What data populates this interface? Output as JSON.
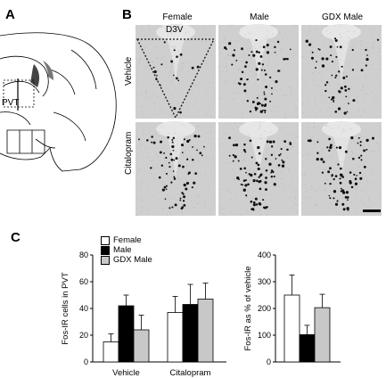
{
  "panels": {
    "a": {
      "letter": "A",
      "label": "PVT"
    },
    "b": {
      "letter": "B",
      "columns": [
        "Female",
        "Male",
        "GDX Male"
      ],
      "rows": [
        "Vehicle",
        "Citalopram"
      ],
      "annotation": "D3V"
    },
    "c": {
      "letter": "C",
      "legend": [
        "Female",
        "Male",
        "GDX Male"
      ],
      "colors": {
        "female": "#ffffff",
        "male": "#000000",
        "gdx": "#c8c8c8"
      }
    }
  },
  "chart_data": [
    {
      "type": "bar",
      "ylabel": "Fos-IR cells in PVT",
      "ylim": [
        0,
        80
      ],
      "yticks": [
        0,
        20,
        40,
        60,
        80
      ],
      "categories": [
        "Vehicle",
        "Citalopram"
      ],
      "series": [
        {
          "name": "Female",
          "values": [
            15,
            37
          ],
          "errors": [
            6,
            12
          ]
        },
        {
          "name": "Male",
          "values": [
            42,
            43
          ],
          "errors": [
            8,
            15
          ]
        },
        {
          "name": "GDX Male",
          "values": [
            24,
            47
          ],
          "errors": [
            11,
            12
          ]
        }
      ]
    },
    {
      "type": "bar",
      "ylabel": "Fos-IR as % of vehicle",
      "ylim": [
        0,
        400
      ],
      "yticks": [
        0,
        100,
        200,
        300,
        400
      ],
      "categories": [
        ""
      ],
      "series": [
        {
          "name": "Female",
          "values": [
            250
          ],
          "errors": [
            75
          ]
        },
        {
          "name": "Male",
          "values": [
            102
          ],
          "errors": [
            35
          ]
        },
        {
          "name": "GDX Male",
          "values": [
            203
          ],
          "errors": [
            50
          ]
        }
      ]
    }
  ]
}
